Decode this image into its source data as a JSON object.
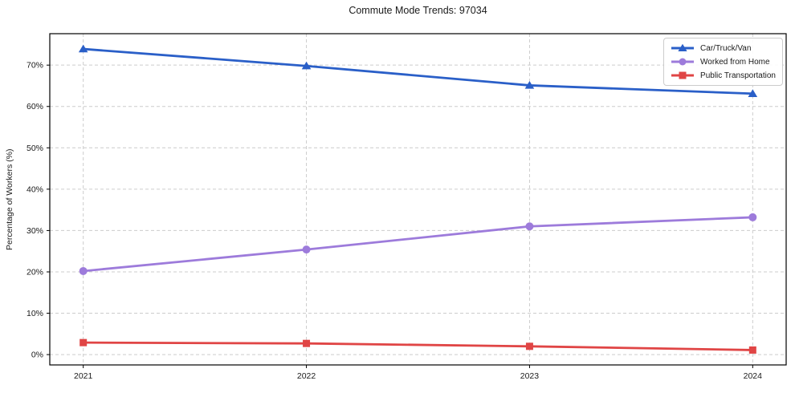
{
  "chart_data": {
    "type": "line",
    "title": "Commute Mode Trends: 97034",
    "xlabel": "",
    "ylabel": "Percentage of Workers (%)",
    "categories": [
      "2021",
      "2022",
      "2023",
      "2024"
    ],
    "series": [
      {
        "name": "Car/Truck/Van",
        "color": "#2a5fc8",
        "marker": "triangle",
        "values": [
          73.9,
          69.8,
          65.1,
          63.1
        ]
      },
      {
        "name": "Worked from Home",
        "color": "#9d7bdb",
        "marker": "circle",
        "values": [
          20.2,
          25.4,
          31.0,
          33.2
        ]
      },
      {
        "name": "Public Transportation",
        "color": "#e04545",
        "marker": "square",
        "values": [
          2.9,
          2.7,
          2.0,
          1.1
        ]
      }
    ],
    "ylim": [
      -2.5,
      77.6
    ],
    "yticks": [
      0,
      10,
      20,
      30,
      40,
      50,
      60,
      70
    ],
    "ytick_suffix": "%",
    "grid": "dashed",
    "grid_color": "#cccccc",
    "axis_color": "#000000",
    "tick_label_color": "#1a1a1a",
    "legend_position": "upper-right"
  }
}
